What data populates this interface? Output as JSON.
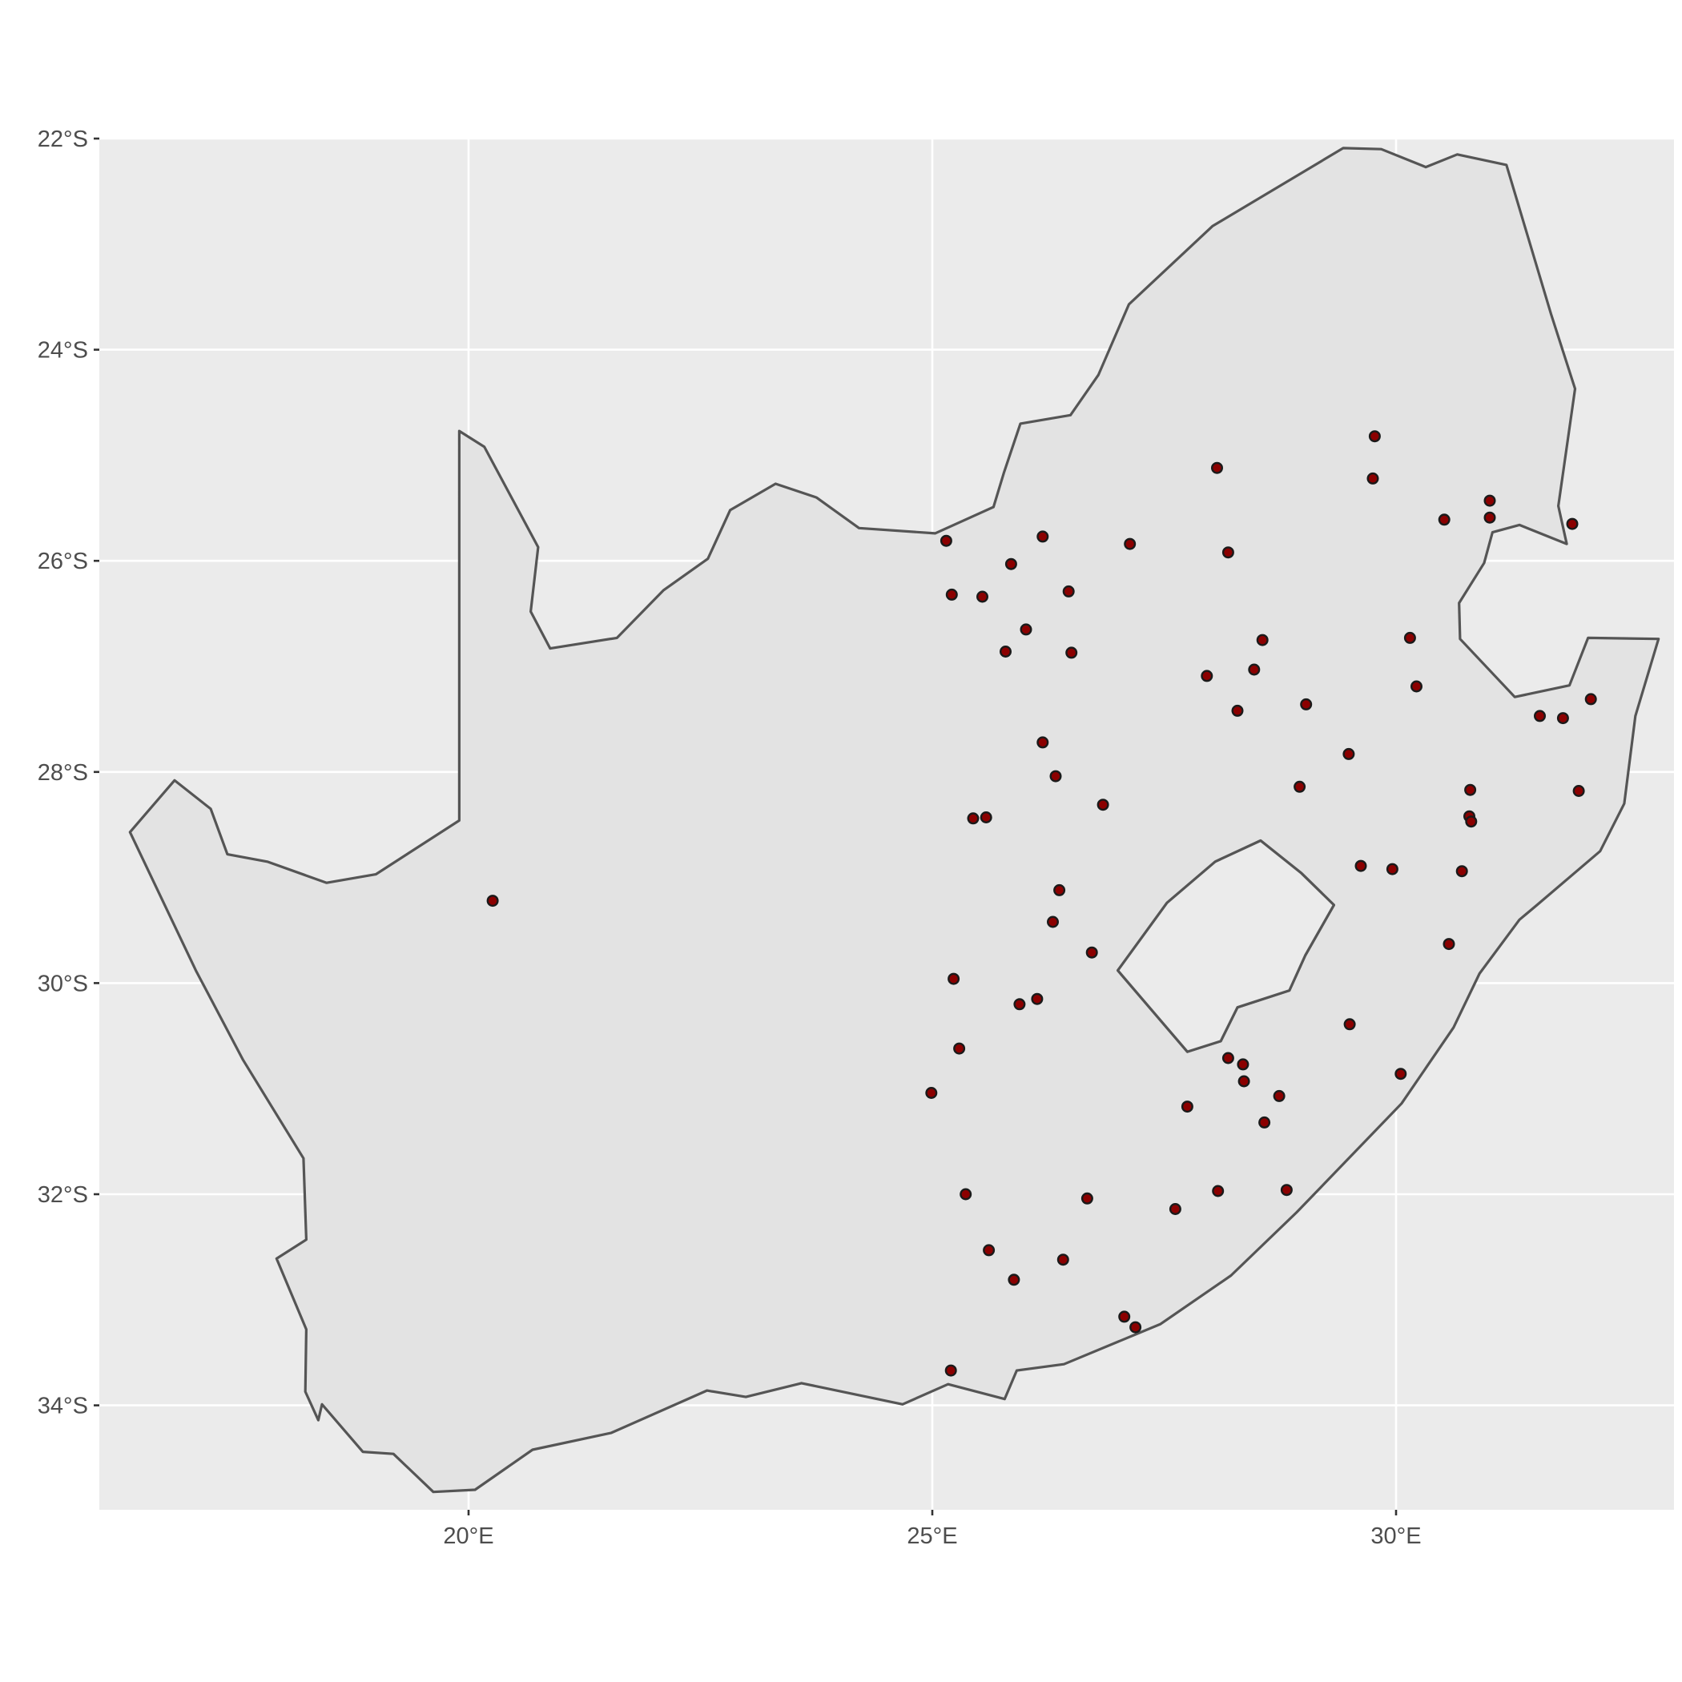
{
  "chart_data": {
    "type": "scatter",
    "title": "",
    "xlabel": "",
    "ylabel": "",
    "xlim": [
      16.0,
      33.0
    ],
    "ylim": [
      -34.9,
      -22.0
    ],
    "grid": true,
    "x_ticks": [
      {
        "value": 20,
        "label": "20°E"
      },
      {
        "value": 25,
        "label": "25°E"
      },
      {
        "value": 30,
        "label": "30°E"
      }
    ],
    "y_ticks": [
      {
        "value": -22,
        "label": "22°S"
      },
      {
        "value": -24,
        "label": "24°S"
      },
      {
        "value": -26,
        "label": "26°S"
      },
      {
        "value": -28,
        "label": "28°S"
      },
      {
        "value": -30,
        "label": "30°S"
      },
      {
        "value": -32,
        "label": "32°S"
      },
      {
        "value": -34,
        "label": "34°S"
      }
    ],
    "colors": {
      "panel_background": "#ebebeb",
      "land_fill": "#e3e3e3",
      "outline": "#555555",
      "point_fill": "#8b0000",
      "point_stroke": "#1a1a1a"
    },
    "outline": [
      [
        16.35,
        -28.57
      ],
      [
        16.83,
        -28.08
      ],
      [
        17.22,
        -28.35
      ],
      [
        17.4,
        -28.78
      ],
      [
        17.83,
        -28.85
      ],
      [
        18.47,
        -29.05
      ],
      [
        19.0,
        -28.97
      ],
      [
        19.9,
        -28.46
      ],
      [
        19.9,
        -24.77
      ],
      [
        20.17,
        -24.92
      ],
      [
        20.75,
        -25.87
      ],
      [
        20.67,
        -26.48
      ],
      [
        20.88,
        -26.83
      ],
      [
        21.6,
        -26.73
      ],
      [
        22.1,
        -26.28
      ],
      [
        22.58,
        -25.98
      ],
      [
        22.82,
        -25.52
      ],
      [
        23.31,
        -25.27
      ],
      [
        23.75,
        -25.4
      ],
      [
        24.21,
        -25.69
      ],
      [
        25.03,
        -25.74
      ],
      [
        25.66,
        -25.49
      ],
      [
        25.77,
        -25.17
      ],
      [
        25.95,
        -24.7
      ],
      [
        26.49,
        -24.62
      ],
      [
        26.79,
        -24.24
      ],
      [
        27.12,
        -23.57
      ],
      [
        28.02,
        -22.83
      ],
      [
        29.43,
        -22.09
      ],
      [
        29.84,
        -22.1
      ],
      [
        30.32,
        -22.27
      ],
      [
        30.66,
        -22.15
      ],
      [
        31.19,
        -22.25
      ],
      [
        31.67,
        -23.66
      ],
      [
        31.93,
        -24.37
      ],
      [
        31.75,
        -25.48
      ],
      [
        31.84,
        -25.84
      ],
      [
        31.33,
        -25.66
      ],
      [
        31.04,
        -25.73
      ],
      [
        30.95,
        -26.02
      ],
      [
        30.68,
        -26.4
      ],
      [
        30.69,
        -26.74
      ],
      [
        31.28,
        -27.29
      ],
      [
        31.87,
        -27.18
      ],
      [
        32.07,
        -26.73
      ],
      [
        32.83,
        -26.74
      ],
      [
        32.58,
        -27.47
      ],
      [
        32.46,
        -28.3
      ],
      [
        32.2,
        -28.75
      ],
      [
        31.52,
        -29.26
      ],
      [
        31.33,
        -29.4
      ],
      [
        30.9,
        -29.91
      ],
      [
        30.62,
        -30.42
      ],
      [
        30.06,
        -31.14
      ],
      [
        28.93,
        -32.17
      ],
      [
        28.22,
        -32.77
      ],
      [
        27.46,
        -33.23
      ],
      [
        26.42,
        -33.61
      ],
      [
        25.91,
        -33.67
      ],
      [
        25.78,
        -33.94
      ],
      [
        25.17,
        -33.8
      ],
      [
        24.68,
        -33.99
      ],
      [
        23.59,
        -33.79
      ],
      [
        22.99,
        -33.92
      ],
      [
        22.57,
        -33.86
      ],
      [
        21.54,
        -34.26
      ],
      [
        20.69,
        -34.42
      ],
      [
        20.07,
        -34.8
      ],
      [
        19.62,
        -34.82
      ],
      [
        19.19,
        -34.46
      ],
      [
        18.86,
        -34.44
      ],
      [
        18.42,
        -33.99
      ],
      [
        18.38,
        -34.14
      ],
      [
        18.24,
        -33.87
      ],
      [
        18.25,
        -33.28
      ],
      [
        17.93,
        -32.61
      ],
      [
        18.25,
        -32.43
      ],
      [
        18.22,
        -31.66
      ],
      [
        17.57,
        -30.73
      ],
      [
        17.06,
        -29.88
      ],
      [
        16.35,
        -28.57
      ]
    ],
    "lesotho_outline": [
      [
        28.98,
        -28.96
      ],
      [
        29.33,
        -29.26
      ],
      [
        29.02,
        -29.74
      ],
      [
        28.85,
        -30.07
      ],
      [
        28.29,
        -30.23
      ],
      [
        28.11,
        -30.55
      ],
      [
        27.75,
        -30.65
      ],
      [
        27.0,
        -29.88
      ],
      [
        27.53,
        -29.24
      ],
      [
        28.05,
        -28.85
      ],
      [
        28.54,
        -28.65
      ],
      [
        28.98,
        -28.96
      ]
    ],
    "points": [
      [
        20.26,
        -29.22
      ],
      [
        25.15,
        -25.81
      ],
      [
        25.21,
        -26.32
      ],
      [
        25.54,
        -26.34
      ],
      [
        25.85,
        -26.03
      ],
      [
        26.19,
        -25.77
      ],
      [
        26.01,
        -26.65
      ],
      [
        25.79,
        -26.86
      ],
      [
        26.47,
        -26.29
      ],
      [
        26.5,
        -26.87
      ],
      [
        27.13,
        -25.84
      ],
      [
        28.07,
        -25.12
      ],
      [
        28.19,
        -25.92
      ],
      [
        27.96,
        -27.09
      ],
      [
        28.47,
        -27.03
      ],
      [
        28.29,
        -27.42
      ],
      [
        28.56,
        -26.75
      ],
      [
        29.03,
        -27.36
      ],
      [
        29.77,
        -24.82
      ],
      [
        29.75,
        -25.22
      ],
      [
        30.52,
        -25.61
      ],
      [
        31.01,
        -25.43
      ],
      [
        31.01,
        -25.59
      ],
      [
        31.9,
        -25.65
      ],
      [
        30.15,
        -26.73
      ],
      [
        30.22,
        -27.19
      ],
      [
        31.55,
        -27.47
      ],
      [
        31.8,
        -27.49
      ],
      [
        32.1,
        -27.31
      ],
      [
        31.97,
        -28.18
      ],
      [
        30.8,
        -28.17
      ],
      [
        30.79,
        -28.42
      ],
      [
        30.81,
        -28.47
      ],
      [
        30.71,
        -28.94
      ],
      [
        30.57,
        -29.63
      ],
      [
        29.96,
        -28.92
      ],
      [
        29.62,
        -28.89
      ],
      [
        29.49,
        -27.83
      ],
      [
        28.96,
        -28.14
      ],
      [
        26.84,
        -28.31
      ],
      [
        26.19,
        -27.72
      ],
      [
        26.33,
        -28.04
      ],
      [
        25.44,
        -28.44
      ],
      [
        25.58,
        -28.43
      ],
      [
        26.37,
        -29.12
      ],
      [
        26.3,
        -29.42
      ],
      [
        26.72,
        -29.71
      ],
      [
        25.23,
        -29.96
      ],
      [
        25.94,
        -30.2
      ],
      [
        26.13,
        -30.15
      ],
      [
        25.29,
        -30.62
      ],
      [
        24.99,
        -31.04
      ],
      [
        29.5,
        -30.39
      ],
      [
        30.05,
        -30.86
      ],
      [
        28.19,
        -30.71
      ],
      [
        28.35,
        -30.77
      ],
      [
        28.36,
        -30.93
      ],
      [
        28.74,
        -31.07
      ],
      [
        27.75,
        -31.17
      ],
      [
        28.58,
        -31.32
      ],
      [
        25.36,
        -32.0
      ],
      [
        26.67,
        -32.04
      ],
      [
        28.08,
        -31.97
      ],
      [
        28.82,
        -31.96
      ],
      [
        27.62,
        -32.14
      ],
      [
        25.61,
        -32.53
      ],
      [
        25.88,
        -32.81
      ],
      [
        26.41,
        -32.62
      ],
      [
        27.07,
        -33.16
      ],
      [
        27.19,
        -33.26
      ],
      [
        25.2,
        -33.67
      ]
    ]
  }
}
